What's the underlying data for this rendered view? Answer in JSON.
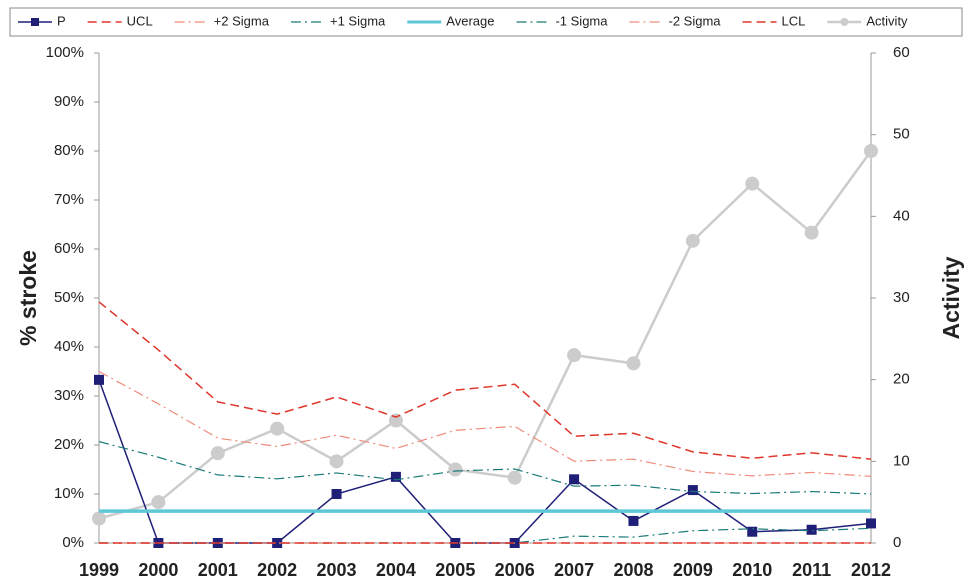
{
  "chart_data": {
    "type": "line",
    "y_label": "% stroke",
    "y2_label": "Activity",
    "categories": [
      "1999",
      "2000",
      "2001",
      "2002",
      "2003",
      "2004",
      "2005",
      "2006",
      "2007",
      "2008",
      "2009",
      "2010",
      "2011",
      "2012"
    ],
    "ylim": [
      0,
      100
    ],
    "yticks": [
      {
        "value": 0,
        "label": "0%"
      },
      {
        "value": 10,
        "label": "10%"
      },
      {
        "value": 20,
        "label": "20%"
      },
      {
        "value": 30,
        "label": "30%"
      },
      {
        "value": 40,
        "label": "40%"
      },
      {
        "value": 50,
        "label": "50%"
      },
      {
        "value": 60,
        "label": "60%"
      },
      {
        "value": 70,
        "label": "70%"
      },
      {
        "value": 80,
        "label": "80%"
      },
      {
        "value": 90,
        "label": "90%"
      },
      {
        "value": 100,
        "label": "100%"
      }
    ],
    "y2lim": [
      0,
      60
    ],
    "y2ticks": [
      0,
      10,
      20,
      30,
      40,
      50,
      60
    ],
    "legend": "top",
    "series": [
      {
        "name": "P",
        "color": "#1f1f78",
        "style": "solid",
        "width": 1.5,
        "marker": "square",
        "values": [
          33.3,
          0,
          0,
          0,
          10,
          13.5,
          0,
          0,
          13,
          4.5,
          10.8,
          2.3,
          2.7,
          4
        ]
      },
      {
        "name": "UCL",
        "color": "#e0352b",
        "style": "dashed",
        "width": 1.5,
        "values": [
          49.2,
          39.4,
          28.8,
          26.3,
          29.8,
          25.7,
          31.2,
          32.4,
          21.8,
          22.4,
          18.6,
          17.3,
          18.4,
          17.1
        ]
      },
      {
        "name": "+2 Sigma",
        "color": "#f08a7a",
        "style": "dashdot",
        "width": 1.2,
        "values": [
          35.0,
          28.4,
          21.4,
          19.7,
          22.0,
          19.3,
          23.0,
          23.8,
          16.7,
          17.1,
          14.6,
          13.7,
          14.4,
          13.6
        ]
      },
      {
        "name": "+1 Sigma",
        "color": "#1a7a78",
        "style": "dashdot",
        "width": 1.2,
        "values": [
          20.7,
          17.5,
          13.9,
          13.1,
          14.3,
          12.9,
          14.7,
          15.1,
          11.6,
          11.8,
          10.5,
          10.1,
          10.5,
          10.0
        ]
      },
      {
        "name": "Average",
        "color": "#5ec8d6",
        "style": "solid",
        "width": 3.5,
        "values": [
          6.5,
          6.5,
          6.5,
          6.5,
          6.5,
          6.5,
          6.5,
          6.5,
          6.5,
          6.5,
          6.5,
          6.5,
          6.5,
          6.5
        ]
      },
      {
        "name": "-1 Sigma",
        "color": "#1a7a78",
        "style": "dashdot",
        "width": 1.2,
        "values": [
          0,
          0,
          0,
          0,
          0,
          0,
          0,
          0,
          1.4,
          1.2,
          2.5,
          2.9,
          2.5,
          3.0
        ]
      },
      {
        "name": "-2 Sigma",
        "color": "#f08a7a",
        "style": "dashdot",
        "width": 1.2,
        "values": [
          0,
          0,
          0,
          0,
          0,
          0,
          0,
          0,
          0,
          0,
          0,
          0,
          0,
          0
        ]
      },
      {
        "name": "LCL",
        "color": "#e0352b",
        "style": "dashed",
        "width": 1.5,
        "values": [
          0,
          0,
          0,
          0,
          0,
          0,
          0,
          0,
          0,
          0,
          0,
          0,
          0,
          0
        ]
      },
      {
        "name": "Activity",
        "color": "#cccccc",
        "style": "solid",
        "width": 2.5,
        "marker": "circle",
        "axis": "y2",
        "values": [
          3,
          5,
          11,
          14,
          10,
          15,
          9,
          8,
          23,
          22,
          37,
          44,
          38,
          48
        ]
      }
    ]
  }
}
